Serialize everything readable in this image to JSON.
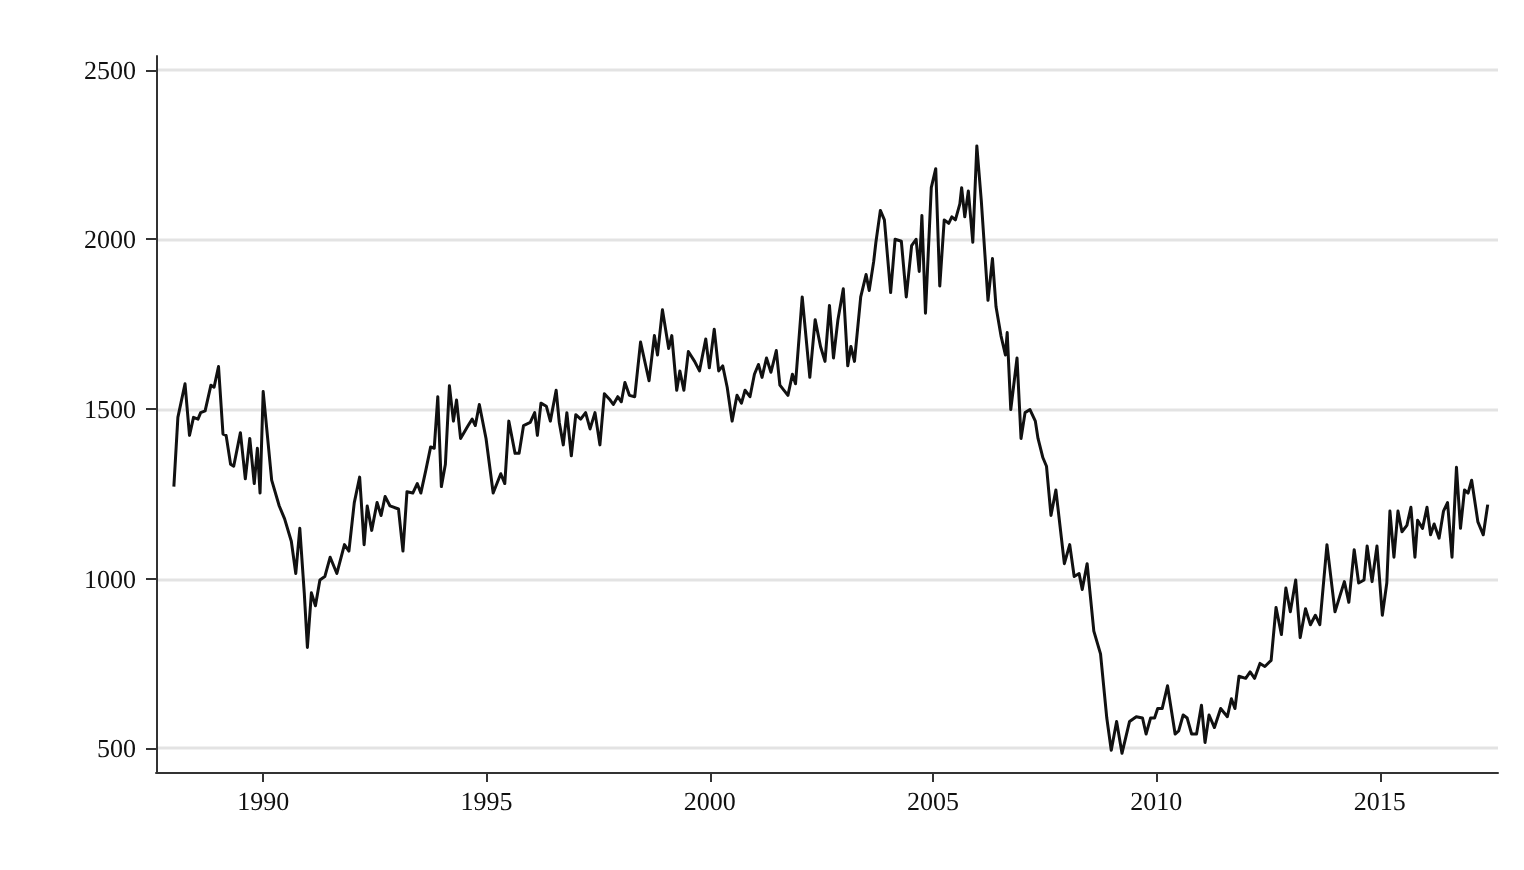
{
  "chart_data": {
    "type": "line",
    "xlim": [
      1987.6,
      2017.65
    ],
    "xticks": [
      1990,
      1995,
      2000,
      2005,
      2010,
      2015
    ],
    "ylim": [
      430,
      2540
    ],
    "yticks": [
      500,
      1000,
      1500,
      2000,
      2500
    ],
    "grid": "y",
    "marker": "none",
    "line_style": "solid",
    "series": [
      {
        "color": "#111111",
        "x": [
          1988.0,
          1988.09,
          1988.25,
          1988.35,
          1988.44,
          1988.54,
          1988.6,
          1988.7,
          1988.83,
          1988.9,
          1989.0,
          1989.1,
          1989.17,
          1989.27,
          1989.34,
          1989.49,
          1989.6,
          1989.7,
          1989.8,
          1989.87,
          1989.93,
          1990.0,
          1990.19,
          1990.36,
          1990.48,
          1990.63,
          1990.73,
          1990.82,
          1990.92,
          1990.99,
          1991.08,
          1991.17,
          1991.27,
          1991.38,
          1991.5,
          1991.65,
          1991.82,
          1991.92,
          1992.04,
          1992.16,
          1992.26,
          1992.33,
          1992.43,
          1992.55,
          1992.64,
          1992.73,
          1992.84,
          1993.03,
          1993.13,
          1993.22,
          1993.35,
          1993.45,
          1993.53,
          1993.64,
          1993.75,
          1993.83,
          1993.91,
          1993.99,
          1994.08,
          1994.17,
          1994.26,
          1994.33,
          1994.42,
          1994.59,
          1994.68,
          1994.75,
          1994.84,
          1994.99,
          1995.15,
          1995.32,
          1995.41,
          1995.5,
          1995.64,
          1995.73,
          1995.83,
          1995.98,
          1996.08,
          1996.14,
          1996.22,
          1996.34,
          1996.43,
          1996.56,
          1996.63,
          1996.72,
          1996.8,
          1996.9,
          1997.0,
          1997.11,
          1997.22,
          1997.32,
          1997.43,
          1997.54,
          1997.64,
          1997.77,
          1997.84,
          1997.94,
          1998.02,
          1998.1,
          1998.2,
          1998.32,
          1998.45,
          1998.64,
          1998.76,
          1998.83,
          1998.94,
          1999.08,
          1999.15,
          1999.26,
          1999.33,
          1999.42,
          1999.52,
          1999.66,
          1999.77,
          1999.91,
          1999.99,
          2000.1,
          2000.2,
          2000.29,
          2000.39,
          2000.5,
          2000.61,
          2000.71,
          2000.79,
          2000.9,
          2001.0,
          2001.09,
          2001.17,
          2001.27,
          2001.37,
          2001.49,
          2001.57,
          2001.75,
          2001.85,
          2001.92,
          2002.07,
          2002.24,
          2002.36,
          2002.48,
          2002.58,
          2002.68,
          2002.77,
          2002.87,
          2002.99,
          2003.09,
          2003.16,
          2003.24,
          2003.38,
          2003.5,
          2003.57,
          2003.67,
          2003.72,
          2003.82,
          2003.91,
          2004.05,
          2004.15,
          2004.29,
          2004.4,
          2004.52,
          2004.62,
          2004.69,
          2004.75,
          2004.83,
          2004.96,
          2005.06,
          2005.15,
          2005.25,
          2005.35,
          2005.42,
          2005.5,
          2005.6,
          2005.64,
          2005.71,
          2005.79,
          2005.89,
          2005.98,
          2006.08,
          2006.23,
          2006.33,
          2006.41,
          2006.52,
          2006.62,
          2006.66,
          2006.74,
          2006.88,
          2006.97,
          2007.06,
          2007.17,
          2007.29,
          2007.35,
          2007.46,
          2007.54,
          2007.64,
          2007.75,
          2007.94,
          2008.06,
          2008.16,
          2008.27,
          2008.34,
          2008.45,
          2008.6,
          2008.75,
          2008.89,
          2008.99,
          2009.11,
          2009.23,
          2009.4,
          2009.55,
          2009.69,
          2009.77,
          2009.87,
          2009.96,
          2010.03,
          2010.13,
          2010.25,
          2010.42,
          2010.5,
          2010.6,
          2010.69,
          2010.79,
          2010.9,
          2011.01,
          2011.09,
          2011.18,
          2011.3,
          2011.44,
          2011.59,
          2011.68,
          2011.76,
          2011.85,
          2012.0,
          2012.1,
          2012.2,
          2012.32,
          2012.43,
          2012.57,
          2012.68,
          2012.8,
          2012.9,
          2013.0,
          2013.12,
          2013.22,
          2013.34,
          2013.45,
          2013.56,
          2013.66,
          2013.82,
          2014.0,
          2014.11,
          2014.21,
          2014.31,
          2014.43,
          2014.53,
          2014.65,
          2014.72,
          2014.83,
          2014.94,
          2015.06,
          2015.16,
          2015.23,
          2015.32,
          2015.41,
          2015.5,
          2015.61,
          2015.7,
          2015.79,
          2015.85,
          2015.96,
          2016.06,
          2016.14,
          2016.22,
          2016.33,
          2016.43,
          2016.52,
          2016.62,
          2016.72,
          2016.81,
          2016.9,
          2016.98,
          2017.06,
          2017.2,
          2017.32,
          2017.42
        ],
        "values": [
          1271,
          1475,
          1574,
          1422,
          1475,
          1470,
          1489,
          1494,
          1570,
          1564,
          1625,
          1426,
          1422,
          1337,
          1331,
          1430,
          1294,
          1413,
          1280,
          1384,
          1252,
          1551,
          1290,
          1214,
          1176,
          1110,
          1015,
          1148,
          958,
          797,
          958,
          920,
          996,
          1006,
          1063,
          1015,
          1100,
          1081,
          1224,
          1299,
          1100,
          1214,
          1142,
          1224,
          1186,
          1242,
          1214,
          1205,
          1081,
          1256,
          1252,
          1280,
          1252,
          1318,
          1388,
          1384,
          1536,
          1271,
          1337,
          1568,
          1464,
          1526,
          1413,
          1451,
          1470,
          1451,
          1513,
          1413,
          1252,
          1309,
          1280,
          1464,
          1369,
          1369,
          1451,
          1460,
          1489,
          1422,
          1517,
          1508,
          1464,
          1555,
          1460,
          1394,
          1489,
          1362,
          1483,
          1470,
          1489,
          1441,
          1489,
          1394,
          1545,
          1526,
          1513,
          1536,
          1521,
          1578,
          1540,
          1536,
          1697,
          1583,
          1716,
          1659,
          1792,
          1678,
          1716,
          1555,
          1612,
          1555,
          1669,
          1640,
          1612,
          1706,
          1621,
          1735,
          1612,
          1627,
          1564,
          1464,
          1540,
          1517,
          1555,
          1536,
          1602,
          1631,
          1593,
          1650,
          1608,
          1672,
          1570,
          1540,
          1602,
          1574,
          1830,
          1593,
          1763,
          1684,
          1640,
          1805,
          1650,
          1763,
          1854,
          1627,
          1684,
          1640,
          1830,
          1896,
          1849,
          1934,
          1991,
          2085,
          2057,
          1843,
          2000,
          1994,
          1830,
          1981,
          2000,
          1905,
          2070,
          1782,
          2152,
          2208,
          1862,
          2057,
          2047,
          2066,
          2057,
          2104,
          2152,
          2066,
          2142,
          1991,
          2275,
          2114,
          1820,
          1943,
          1801,
          1716,
          1659,
          1725,
          1498,
          1650,
          1413,
          1489,
          1498,
          1464,
          1413,
          1356,
          1331,
          1186,
          1261,
          1044,
          1100,
          1006,
          1015,
          968,
          1044,
          845,
          778,
          589,
          494,
          579,
          485,
          579,
          593,
          589,
          542,
          589,
          589,
          617,
          617,
          684,
          542,
          551,
          598,
          589,
          542,
          542,
          627,
          517,
          598,
          561,
          617,
          593,
          646,
          617,
          712,
          706,
          725,
          706,
          750,
          741,
          759,
          915,
          835,
          972,
          902,
          996,
          826,
          911,
          864,
          892,
          864,
          1100,
          902,
          949,
          991,
          930,
          1085,
          987,
          996,
          1096,
          991,
          1096,
          892,
          987,
          1199,
          1063,
          1199,
          1138,
          1157,
          1210,
          1063,
          1172,
          1148,
          1210,
          1129,
          1161,
          1119,
          1199,
          1224,
          1063,
          1328,
          1148,
          1261,
          1252,
          1290,
          1167,
          1129,
          1218
        ]
      }
    ]
  }
}
